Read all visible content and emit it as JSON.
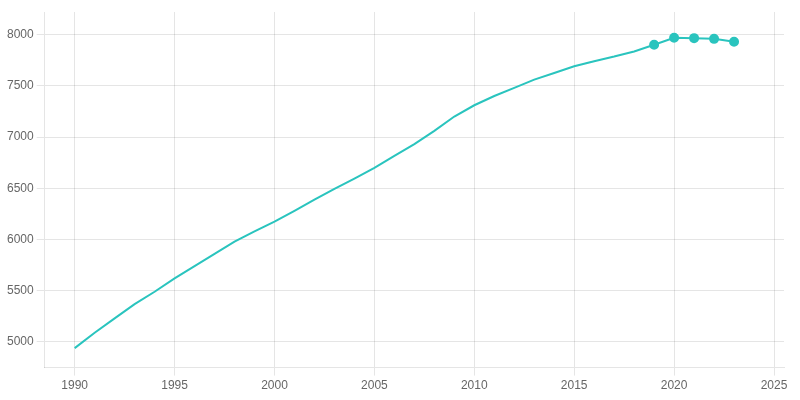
{
  "chart_data": {
    "type": "line",
    "x": [
      1990,
      1991,
      1992,
      1993,
      1994,
      1995,
      1996,
      1997,
      1998,
      1999,
      2000,
      2001,
      2002,
      2003,
      2004,
      2005,
      2006,
      2007,
      2008,
      2009,
      2010,
      2011,
      2012,
      2013,
      2014,
      2015,
      2016,
      2017,
      2018,
      2019,
      2020,
      2021,
      2022,
      2023
    ],
    "series": [
      {
        "color": "#2ac4be",
        "marker": "none",
        "line_style": "solid",
        "values": [
          4940,
          5090,
          5230,
          5370,
          5490,
          5620,
          5740,
          5860,
          5980,
          6080,
          6175,
          6280,
          6390,
          6495,
          6595,
          6700,
          6815,
          6930,
          7060,
          7200,
          7310,
          7400,
          7480,
          7560,
          7625,
          7690,
          7740,
          7785,
          7835,
          7900,
          7968,
          7965,
          7958,
          7930
        ]
      },
      {
        "color": "#2ac4be",
        "marker": "o",
        "line_style": "none",
        "values": [
          null,
          null,
          null,
          null,
          null,
          null,
          null,
          null,
          null,
          null,
          null,
          null,
          null,
          null,
          null,
          null,
          null,
          null,
          null,
          null,
          null,
          null,
          null,
          null,
          null,
          null,
          null,
          null,
          null,
          7900,
          7968,
          7965,
          7958,
          7930
        ]
      }
    ],
    "xlim": [
      1988.5,
      2025.5
    ],
    "xticks": [
      1990,
      1995,
      2000,
      2005,
      2010,
      2015,
      2020,
      2025
    ],
    "ylim": [
      4750,
      8220
    ],
    "yticks": [
      5000,
      5500,
      6000,
      6500,
      7000,
      7500,
      8000
    ],
    "grid": true
  }
}
